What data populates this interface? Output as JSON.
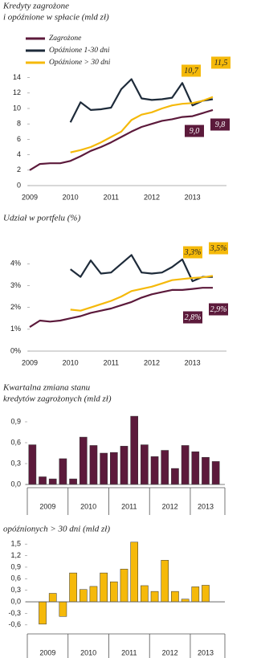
{
  "chart_data": [
    {
      "type": "line",
      "title": [
        "Kredyty zagrożone",
        "i opóźnione w spłacie (mld zł)"
      ],
      "categories": [
        "2009",
        null,
        null,
        null,
        "2010",
        null,
        null,
        null,
        "2011",
        null,
        null,
        null,
        "2012",
        null,
        null,
        null,
        "2013",
        null,
        null
      ],
      "series": [
        {
          "name": "Zagrożone",
          "color": "#5c1a3b",
          "values": [
            2.0,
            2.8,
            2.9,
            2.9,
            3.2,
            3.8,
            4.5,
            5.0,
            5.6,
            6.3,
            7.0,
            7.6,
            8.0,
            8.4,
            8.6,
            8.9,
            9.0,
            9.4,
            9.8
          ]
        },
        {
          "name": "Opóźnione 1-30 dni",
          "color": "#1e2b3a",
          "values": [
            null,
            null,
            null,
            null,
            8.2,
            10.8,
            9.8,
            9.9,
            10.1,
            12.5,
            13.8,
            11.3,
            11.1,
            11.2,
            11.4,
            13.3,
            10.4,
            11.0,
            11.2
          ]
        },
        {
          "name": "Opóźnione > 30 dni",
          "color": "#f5b90a",
          "values": [
            null,
            null,
            null,
            null,
            4.3,
            4.6,
            5.0,
            5.6,
            6.3,
            7.0,
            8.5,
            9.2,
            9.5,
            10.0,
            10.4,
            10.6,
            10.7,
            11.0,
            11.5
          ]
        }
      ],
      "ylim": [
        0,
        15
      ],
      "yticks": [
        0,
        2,
        4,
        6,
        8,
        10,
        12,
        14
      ],
      "grid": false,
      "annotations": [
        {
          "text": "10,7",
          "color": "#f5b90a"
        },
        {
          "text": "11,5",
          "color": "#f5b90a"
        },
        {
          "text": "9,0",
          "color": "#5c1a3b"
        },
        {
          "text": "9,8",
          "color": "#5c1a3b"
        }
      ]
    },
    {
      "type": "line",
      "title": [
        "Udział w portfelu (%)"
      ],
      "categories": [
        "2009",
        null,
        null,
        null,
        "2010",
        null,
        null,
        null,
        "2011",
        null,
        null,
        null,
        "2012",
        null,
        null,
        null,
        "2013",
        null,
        null
      ],
      "series": [
        {
          "name": "Zagrożone",
          "color": "#5c1a3b",
          "values": [
            1.1,
            1.4,
            1.35,
            1.4,
            1.5,
            1.6,
            1.75,
            1.85,
            1.95,
            2.1,
            2.25,
            2.45,
            2.6,
            2.7,
            2.8,
            2.8,
            2.85,
            2.9,
            2.9
          ]
        },
        {
          "name": "Opóźnione 1-30 dni",
          "color": "#1e2b3a",
          "values": [
            null,
            null,
            null,
            null,
            3.75,
            3.4,
            4.15,
            3.55,
            3.6,
            4.0,
            4.4,
            3.6,
            3.55,
            3.6,
            3.85,
            4.2,
            3.2,
            3.4,
            3.4
          ]
        },
        {
          "name": "Opóźnione > 30 dni",
          "color": "#f5b90a",
          "values": [
            null,
            null,
            null,
            null,
            1.9,
            1.85,
            2.0,
            2.15,
            2.3,
            2.5,
            2.75,
            2.85,
            2.95,
            3.1,
            3.25,
            3.3,
            3.35,
            3.38,
            3.45
          ]
        }
      ],
      "ylim": [
        0,
        4.6
      ],
      "yticks": [
        {
          "value": 0,
          "label": "0%"
        },
        {
          "value": 1,
          "label": "1%"
        },
        {
          "value": 2,
          "label": "2%"
        },
        {
          "value": 3,
          "label": "3%"
        },
        {
          "value": 4,
          "label": "4%"
        }
      ],
      "grid": false,
      "annotations": [
        {
          "text": "3,3%",
          "color": "#f5b90a"
        },
        {
          "text": "3,5%",
          "color": "#f5b90a"
        },
        {
          "text": "2,8%",
          "color": "#5c1a3b"
        },
        {
          "text": "2,9%",
          "color": "#5c1a3b"
        }
      ]
    },
    {
      "type": "bar",
      "title": [
        "Kwartalna zmiana stanu",
        "kredytów zagrożonych (mld zł)"
      ],
      "categories": [
        "2009",
        null,
        null,
        null,
        "2010",
        null,
        null,
        null,
        "2011",
        null,
        null,
        null,
        "2012",
        null,
        null,
        null,
        "2013",
        null,
        null
      ],
      "values": [
        0.57,
        0.11,
        0.08,
        0.37,
        0.08,
        0.68,
        0.56,
        0.45,
        0.46,
        0.55,
        0.98,
        0.57,
        0.4,
        0.49,
        0.23,
        0.56,
        0.47,
        0.39,
        0.33
      ],
      "color": "#5c1a3b",
      "ylim": [
        0,
        1.05
      ],
      "yticks": [
        {
          "value": 0,
          "label": "0,0"
        },
        {
          "value": 0.3,
          "label": "0,3"
        },
        {
          "value": 0.6,
          "label": "0,6"
        },
        {
          "value": 0.9,
          "label": "0,9"
        }
      ]
    },
    {
      "type": "bar",
      "title": [
        "opóźnionych > 30 dni (mld zł)"
      ],
      "categories": [
        "2009",
        null,
        null,
        null,
        "2010",
        null,
        null,
        null,
        "2011",
        null,
        null,
        null,
        "2012",
        null,
        null,
        null,
        "2013",
        null,
        null
      ],
      "values": [
        null,
        -0.58,
        0.22,
        -0.38,
        0.75,
        0.32,
        0.4,
        0.75,
        0.52,
        0.85,
        1.55,
        0.42,
        0.27,
        1.08,
        0.27,
        0.07,
        0.39,
        0.43,
        null
      ],
      "color": "#f5b90a",
      "ylim": [
        -0.75,
        1.65
      ],
      "yticks": [
        {
          "value": -0.6,
          "label": "-0,6"
        },
        {
          "value": -0.3,
          "label": "-0,3"
        },
        {
          "value": 0,
          "label": "0,0"
        },
        {
          "value": 0.3,
          "label": "0,3"
        },
        {
          "value": 0.6,
          "label": "0,6"
        },
        {
          "value": 0.9,
          "label": "0,9"
        },
        {
          "value": 1.2,
          "label": "1,2"
        },
        {
          "value": 1.5,
          "label": "1,5"
        }
      ]
    }
  ]
}
